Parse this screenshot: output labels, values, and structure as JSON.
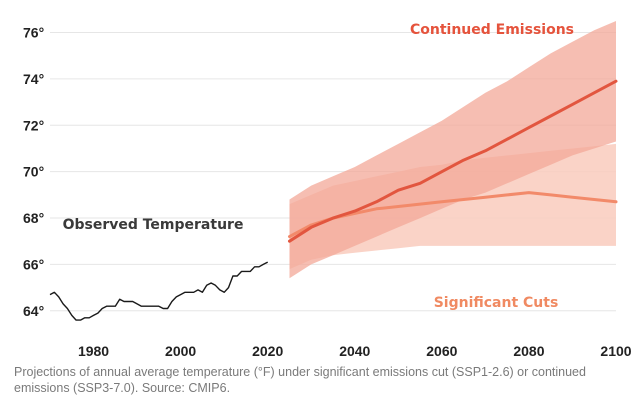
{
  "chart_data": {
    "type": "line",
    "xlim": [
      1970,
      2100
    ],
    "ylim": [
      63,
      76.8
    ],
    "y_ticks": [
      64,
      66,
      68,
      70,
      72,
      74,
      76
    ],
    "x_ticks": [
      1980,
      2000,
      2020,
      2040,
      2060,
      2080,
      2100
    ],
    "y_unit_symbol": "°",
    "grid": true,
    "labels": {
      "observed": "Observed Temperature",
      "continued": "Continued Emissions",
      "cuts": "Significant Cuts"
    },
    "colors": {
      "observed": "#1a1a1a",
      "continued": "#e2563f",
      "cuts": "#f28a6a",
      "continued_band": "#f3a898",
      "cuts_band": "#f9cbbd",
      "label_continued": "#e5533c",
      "label_cuts": "#f08a62",
      "tick_text": "#222222",
      "grid": "#e6e6e6"
    },
    "series": [
      {
        "name": "Observed Temperature",
        "x": [
          1970,
          1971,
          1972,
          1973,
          1974,
          1975,
          1976,
          1977,
          1978,
          1979,
          1980,
          1981,
          1982,
          1983,
          1984,
          1985,
          1986,
          1987,
          1988,
          1989,
          1990,
          1991,
          1992,
          1993,
          1994,
          1995,
          1996,
          1997,
          1998,
          1999,
          2000,
          2001,
          2002,
          2003,
          2004,
          2005,
          2006,
          2007,
          2008,
          2009,
          2010,
          2011,
          2012,
          2013,
          2014,
          2015,
          2016,
          2017,
          2018,
          2019,
          2020
        ],
        "values": [
          64.7,
          64.8,
          64.6,
          64.3,
          64.1,
          63.8,
          63.6,
          63.6,
          63.7,
          63.7,
          63.8,
          63.9,
          64.1,
          64.2,
          64.2,
          64.2,
          64.5,
          64.4,
          64.4,
          64.4,
          64.3,
          64.2,
          64.2,
          64.2,
          64.2,
          64.2,
          64.1,
          64.1,
          64.4,
          64.6,
          64.7,
          64.8,
          64.8,
          64.8,
          64.9,
          64.8,
          65.1,
          65.2,
          65.1,
          64.9,
          64.8,
          65.0,
          65.5,
          65.5,
          65.7,
          65.7,
          65.7,
          65.9,
          65.9,
          66.0,
          66.1
        ]
      },
      {
        "name": "Continued Emissions",
        "x": [
          2025,
          2030,
          2035,
          2040,
          2045,
          2050,
          2055,
          2060,
          2065,
          2070,
          2075,
          2080,
          2085,
          2090,
          2095,
          2100
        ],
        "values": [
          67.0,
          67.6,
          68.0,
          68.3,
          68.7,
          69.2,
          69.5,
          70.0,
          70.5,
          70.9,
          71.4,
          71.9,
          72.4,
          72.9,
          73.4,
          73.9
        ],
        "band_low": [
          65.4,
          66.0,
          66.4,
          66.8,
          67.2,
          67.6,
          68.0,
          68.4,
          68.8,
          69.1,
          69.5,
          69.9,
          70.3,
          70.7,
          71.0,
          71.3
        ],
        "band_high": [
          68.8,
          69.4,
          69.8,
          70.2,
          70.7,
          71.2,
          71.7,
          72.2,
          72.8,
          73.4,
          73.9,
          74.5,
          75.1,
          75.6,
          76.1,
          76.5
        ]
      },
      {
        "name": "Significant Cuts",
        "x": [
          2025,
          2030,
          2035,
          2040,
          2045,
          2050,
          2055,
          2060,
          2065,
          2070,
          2075,
          2080,
          2085,
          2090,
          2095,
          2100
        ],
        "values": [
          67.2,
          67.7,
          68.0,
          68.2,
          68.4,
          68.5,
          68.6,
          68.7,
          68.8,
          68.9,
          69.0,
          69.1,
          69.0,
          68.9,
          68.8,
          68.7
        ],
        "band_low": [
          65.8,
          66.2,
          66.4,
          66.5,
          66.6,
          66.7,
          66.8,
          66.8,
          66.8,
          66.8,
          66.8,
          66.8,
          66.8,
          66.8,
          66.8,
          66.8
        ],
        "band_high": [
          68.6,
          69.0,
          69.4,
          69.6,
          69.8,
          70.0,
          70.2,
          70.3,
          70.5,
          70.6,
          70.7,
          70.8,
          70.9,
          71.0,
          71.1,
          71.2
        ]
      }
    ],
    "caption": "Projections of annual average temperature (°F) under significant emissions cut (SSP1-2.6) or continued emissions (SSP3-7.0). Source: CMIP6."
  }
}
